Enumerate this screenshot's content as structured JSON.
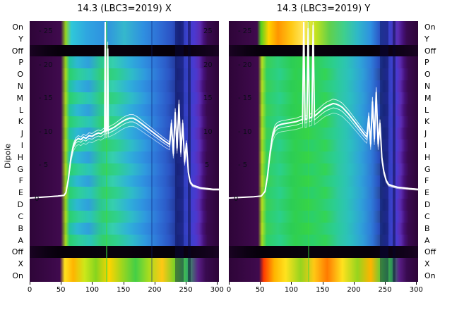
{
  "figure": {
    "dipole_label": "Dipole",
    "row_labels": [
      "On",
      "Y",
      "Off",
      "P",
      "O",
      "N",
      "M",
      "L",
      "K",
      "J",
      "I",
      "H",
      "G",
      "F",
      "E",
      "D",
      "C",
      "B",
      "A",
      "Off",
      "X",
      "On"
    ],
    "x_ticks": [
      0,
      50,
      100,
      150,
      200,
      250,
      300
    ],
    "panels": [
      {
        "id": "X",
        "title": "14.3 (LBC3=2019) X",
        "inner_labels_left": [
          {
            "text": "- 25",
            "v": 25,
            "x": 13
          },
          {
            "text": "- 20",
            "v": 20,
            "x": 13
          },
          {
            "text": "- 15",
            "v": 15,
            "x": 13
          },
          {
            "text": "- 10",
            "v": 10,
            "x": 13
          },
          {
            "text": "- 5",
            "v": 5,
            "x": 13
          },
          {
            "text": "0",
            "v": 0,
            "x": 7
          }
        ],
        "inner_labels_right": [
          {
            "text": "25",
            "v": 25,
            "x": 246
          },
          {
            "text": "20",
            "v": 20,
            "x": 246
          },
          {
            "text": "15",
            "v": 15,
            "x": 246
          },
          {
            "text": "10",
            "v": 10,
            "x": 246
          },
          {
            "text": "5",
            "v": 5,
            "x": 248
          }
        ]
      },
      {
        "id": "Y",
        "title": "14.3 (LBC3=2019) Y",
        "inner_labels_left": [
          {
            "text": "- 25",
            "v": 25,
            "x": 13
          },
          {
            "text": "- 20",
            "v": 20,
            "x": 13
          },
          {
            "text": "- 15",
            "v": 15,
            "x": 13
          },
          {
            "text": "- 10",
            "v": 10,
            "x": 13
          },
          {
            "text": "- 5",
            "v": 5,
            "x": 13
          },
          {
            "text": "0",
            "v": 0,
            "x": 7
          }
        ],
        "inner_labels_right": []
      }
    ]
  },
  "palette": {
    "on_x_top": "linear-gradient(90deg,#2e0538 0%,#400a4e 16.5%,#95d41e 19%,#2fc8d8 22%,#2fa6e0 30%,#2f90e0 40%,#35b8cc 50%,#2f90e0 60%,#2f70d6 68%,#2b52c4 75%,#21339e 79%,#3a41cc 83%,#4b38d0 87%,#5c2cb2 90%,#451179 92%,#390a50 94%,#2e0538 100%)",
    "on_y_top": "linear-gradient(90deg,#2e0538 0%,#400a4e 15%,#55d01e 17%,#ffd400 21%,#ff9400 26%,#ffc814 33%,#ffe65a 39%,#c2e21e 46%,#62d04a 53%,#3ecf8e 61%,#2fb8c8 68%,#2f90e0 75%,#2b52c4 80%,#3a41cc 85%,#5c2cb2 89.5%,#451179 92%,#390a50 94%,#2e0538 100%)",
    "off_row": "linear-gradient(90deg,#190322 0%,#0c0112 10%,#060009 18%,#08010c 45%,#060009 75%,#10021a 92%,#190322 100%)",
    "spec_x": "linear-gradient(90deg,#2e0538 0%,#400a4e 16.5%,#95d41e 19%,#22c4a0 21%,#2db8d2 25%,#2fa0dc 31%,#2cc98e 38%,#35cfae 44%,#2fb2d8 52%,#2f96e0 59%,#2f78da 66%,#2c5cc9 72%,#233b9f 77%,#2c3db8 80%,#3a41cc 84%,#4b38d0 87%,#5c2cb2 89.5%,#451179 91.5%,#390a50 93.5%,#2e0538 100%)",
    "spec_x2": "linear-gradient(90deg,#2e0538 0%,#400a4e 16.5%,#a8dc1e 19%,#2bd06e 21%,#2fcf9a 26%,#2bc4b8 32%,#33d06a 39%,#2fd08e 46%,#2fbcc8 54%,#2f9ade 61%,#2f74d8 68%,#2b54c4 74%,#22359c 78%,#2c3db8 81%,#3a41cc 85%,#4b38d0 88%,#5c2cb2 90%,#451179 92%,#390a50 94%,#2e0538 100%)",
    "spec_y": "linear-gradient(90deg,#2e0538 0%,#400a4e 15.5%,#b5e01e 17.5%,#3ad055 20%,#2fd07a 26%,#2ccd55 33%,#35d348 41%,#2fd06a 49%,#2bce92 56%,#2cc4b4 62%,#2fa6d8 69%,#2f7eda 75%,#2a53c2 79%,#223a9e 82%,#3a41cc 86%,#4b38d0 88.5%,#5c2cb2 90.5%,#451179 92.5%,#390a50 94.5%,#2e0538 100%)",
    "spec_y2": "linear-gradient(90deg,#2e0538 0%,#400a4e 15.5%,#a0dc1e 17.5%,#2fd065 20%,#2bd08a 27%,#30d04e 35%,#2bd06a 44%,#33d455 51%,#2fc9a0 58%,#2cc0c0 64%,#2f9ed8 71%,#2f74d4 76%,#28489f 80%,#2c3db8 83%,#3a41cc 86.5%,#4b38d0 89%,#5c2cb2 91%,#451179 93%,#390a50 95%,#2e0538 100%)",
    "hot_x": "linear-gradient(90deg,#2e0538 0%,#400a4e 16%,#ffe21e 18.5%,#ffb400 23%,#cde81a 29%,#86d41e 35%,#ffd400 42%,#9ad61f 49%,#44cf46 56%,#a8dc1e 63%,#ffc814 70%,#72d028 77%,#34b060 83%,#5a1f88 89%,#390a50 93%,#2e0538 100%)",
    "hot_y": "linear-gradient(90deg,#2e0538 0%,#400a4e 16%,#ff3c00 18.5%,#ffb400 24%,#ffe21e 30%,#96d41e 38%,#ffc814 45%,#ff7a00 52%,#ffe21e 60%,#96d41e 68%,#ffb400 75%,#52cf3e 81%,#2f9458 86%,#5a1f88 90%,#390a50 94%,#2e0538 100%)"
  },
  "rows": {
    "X": [
      "on_x_top",
      "on_x_top",
      "off_row",
      "spec_x",
      "spec_x2",
      "spec_x",
      "spec_x2",
      "spec_x",
      "spec_x2",
      "spec_x",
      "spec_x2",
      "spec_x",
      "spec_x2",
      "spec_x",
      "spec_x2",
      "spec_x",
      "spec_x2",
      "spec_x",
      "spec_x2",
      "off_row",
      "hot_x",
      "hot_x"
    ],
    "Y": [
      "on_y_top",
      "on_y_top",
      "off_row",
      "spec_y",
      "spec_y2",
      "spec_y",
      "spec_y2",
      "spec_y",
      "spec_y2",
      "spec_y",
      "spec_y2",
      "spec_y",
      "spec_y2",
      "spec_y",
      "spec_y2",
      "spec_y",
      "spec_y2",
      "spec_y",
      "spec_y2",
      "off_row",
      "hot_y",
      "hot_y"
    ]
  },
  "stripes": {
    "X": [
      {
        "x": 206,
        "w": 12,
        "c": "rgba(8,8,70,0.40)"
      },
      {
        "x": 224,
        "w": 4,
        "c": "rgba(5,5,45,0.45)"
      },
      {
        "x": 108,
        "w": 2,
        "c": "rgba(60,220,60,0.55)"
      },
      {
        "x": 172,
        "w": 2,
        "c": "rgba(10,30,120,0.30)"
      }
    ],
    "Y": [
      {
        "x": 214,
        "w": 12,
        "c": "rgba(8,8,70,0.40)"
      },
      {
        "x": 232,
        "w": 4,
        "c": "rgba(5,5,45,0.45)"
      },
      {
        "x": 112,
        "w": 2,
        "c": "rgba(60,220,60,0.45)"
      }
    ]
  },
  "chart_data": [
    {
      "type": "heatmap",
      "title": "14.3 (LBC3=2019) X",
      "x_range": [
        0,
        303
      ],
      "x_ticks": [
        0,
        50,
        100,
        150,
        200,
        250,
        300
      ],
      "y_categories": [
        "On",
        "Y",
        "Off",
        "P",
        "O",
        "N",
        "M",
        "L",
        "K",
        "J",
        "I",
        "H",
        "G",
        "F",
        "E",
        "D",
        "C",
        "B",
        "A",
        "Off",
        "X",
        "On"
      ],
      "ylabel": "Dipole",
      "contour_levels_db": [
        0,
        5,
        10,
        15,
        20,
        25
      ],
      "legend_position": "none",
      "grid": false,
      "overlay_line": {
        "name": "per-dipole spectrum (white, dB)",
        "points": [
          [
            0,
            0.2
          ],
          [
            15,
            0.3
          ],
          [
            30,
            0.4
          ],
          [
            45,
            0.5
          ],
          [
            55,
            0.6
          ],
          [
            58,
            1.0
          ],
          [
            62,
            3.0
          ],
          [
            66,
            6.2
          ],
          [
            70,
            8.0
          ],
          [
            74,
            8.8
          ],
          [
            78,
            9.1
          ],
          [
            82,
            8.9
          ],
          [
            86,
            9.3
          ],
          [
            90,
            9.1
          ],
          [
            95,
            9.5
          ],
          [
            100,
            9.4
          ],
          [
            105,
            9.7
          ],
          [
            110,
            9.9
          ],
          [
            114,
            9.8
          ],
          [
            118,
            10.1
          ],
          [
            120,
            10.2
          ],
          [
            121,
            26.6
          ],
          [
            122,
            10.2
          ],
          [
            124,
            10.3
          ],
          [
            125,
            22.5
          ],
          [
            126,
            10.3
          ],
          [
            130,
            10.5
          ],
          [
            136,
            10.8
          ],
          [
            142,
            11.2
          ],
          [
            148,
            11.6
          ],
          [
            154,
            11.9
          ],
          [
            160,
            12.1
          ],
          [
            166,
            12.1
          ],
          [
            172,
            11.8
          ],
          [
            178,
            11.4
          ],
          [
            185,
            10.9
          ],
          [
            192,
            10.4
          ],
          [
            199,
            9.9
          ],
          [
            206,
            9.4
          ],
          [
            213,
            8.9
          ],
          [
            219,
            8.5
          ],
          [
            224,
            8.2
          ],
          [
            227,
            11.4
          ],
          [
            230,
            6.8
          ],
          [
            233,
            13.0
          ],
          [
            236,
            7.6
          ],
          [
            239,
            14.2
          ],
          [
            242,
            7.0
          ],
          [
            245,
            11.4
          ],
          [
            248,
            5.6
          ],
          [
            251,
            8.4
          ],
          [
            254,
            4.0
          ],
          [
            257,
            2.6
          ],
          [
            261,
            2.1
          ],
          [
            267,
            1.9
          ],
          [
            274,
            1.7
          ],
          [
            284,
            1.6
          ],
          [
            294,
            1.5
          ],
          [
            303,
            1.5
          ]
        ]
      }
    },
    {
      "type": "heatmap",
      "title": "14.3 (LBC3=2019) Y",
      "x_range": [
        0,
        303
      ],
      "x_ticks": [
        0,
        50,
        100,
        150,
        200,
        250,
        300
      ],
      "y_categories": [
        "On",
        "Y",
        "Off",
        "P",
        "O",
        "N",
        "M",
        "L",
        "K",
        "J",
        "I",
        "H",
        "G",
        "F",
        "E",
        "D",
        "C",
        "B",
        "A",
        "Off",
        "X",
        "On"
      ],
      "ylabel": "Dipole",
      "contour_levels_db": [
        0,
        5,
        10,
        15,
        20,
        25
      ],
      "legend_position": "none",
      "grid": false,
      "overlay_line": {
        "name": "per-dipole spectrum (white, dB)",
        "points": [
          [
            0,
            0.2
          ],
          [
            20,
            0.3
          ],
          [
            40,
            0.4
          ],
          [
            52,
            0.5
          ],
          [
            58,
            1.2
          ],
          [
            62,
            3.5
          ],
          [
            66,
            7.0
          ],
          [
            70,
            9.5
          ],
          [
            74,
            10.6
          ],
          [
            78,
            11.0
          ],
          [
            84,
            11.2
          ],
          [
            90,
            11.3
          ],
          [
            96,
            11.4
          ],
          [
            102,
            11.5
          ],
          [
            108,
            11.6
          ],
          [
            114,
            11.8
          ],
          [
            118,
            11.9
          ],
          [
            120,
            26.6
          ],
          [
            122,
            11.9
          ],
          [
            125,
            12.0
          ],
          [
            127,
            25.5
          ],
          [
            129,
            12.1
          ],
          [
            133,
            12.3
          ],
          [
            135,
            26.0
          ],
          [
            137,
            12.4
          ],
          [
            142,
            12.8
          ],
          [
            147,
            13.2
          ],
          [
            152,
            13.6
          ],
          [
            157,
            13.9
          ],
          [
            162,
            14.1
          ],
          [
            167,
            14.3
          ],
          [
            172,
            14.2
          ],
          [
            177,
            14.0
          ],
          [
            182,
            13.7
          ],
          [
            187,
            13.2
          ],
          [
            192,
            12.7
          ],
          [
            197,
            12.1
          ],
          [
            202,
            11.5
          ],
          [
            207,
            10.9
          ],
          [
            212,
            10.3
          ],
          [
            217,
            9.7
          ],
          [
            221,
            9.3
          ],
          [
            224,
            12.4
          ],
          [
            227,
            8.2
          ],
          [
            230,
            14.6
          ],
          [
            233,
            9.0
          ],
          [
            236,
            16.0
          ],
          [
            239,
            8.2
          ],
          [
            242,
            11.4
          ],
          [
            245,
            6.2
          ],
          [
            248,
            4.2
          ],
          [
            252,
            2.8
          ],
          [
            256,
            2.2
          ],
          [
            262,
            2.0
          ],
          [
            270,
            1.8
          ],
          [
            280,
            1.7
          ],
          [
            290,
            1.6
          ],
          [
            303,
            1.5
          ]
        ]
      }
    }
  ]
}
